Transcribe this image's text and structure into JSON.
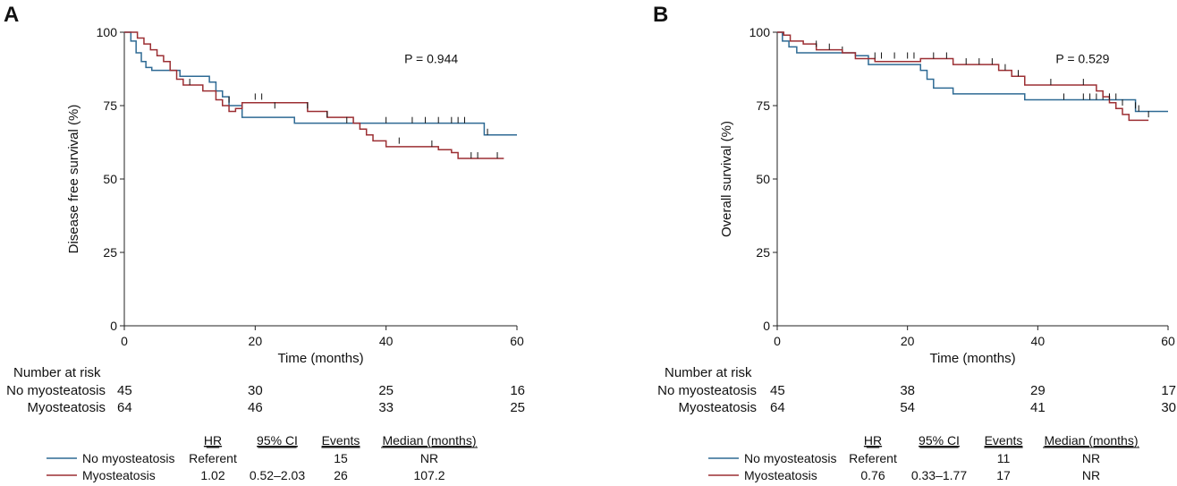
{
  "chart_data": [
    {
      "type": "line",
      "panel": "A",
      "ylabel": "Disease free survival (%)",
      "xlabel": "Time (months)",
      "xlim": [
        0,
        60
      ],
      "ylim": [
        0,
        100
      ],
      "xticks": [
        0,
        20,
        40,
        60
      ],
      "yticks": [
        0,
        25,
        50,
        75,
        100
      ],
      "p_value": "P = 0.944",
      "series": [
        {
          "name": "No myosteatosis",
          "color": "#2e6a94",
          "steps": [
            [
              0,
              100
            ],
            [
              1,
              97
            ],
            [
              1.8,
              93
            ],
            [
              2.6,
              90
            ],
            [
              3.3,
              88
            ],
            [
              4.2,
              87
            ],
            [
              8.5,
              85
            ],
            [
              13,
              83
            ],
            [
              14,
              80
            ],
            [
              15,
              78
            ],
            [
              16,
              75
            ],
            [
              18,
              71
            ],
            [
              26,
              69
            ],
            [
              55,
              69
            ],
            [
              55,
              65
            ],
            [
              60,
              65
            ]
          ],
          "censors": [
            [
              35,
              69
            ],
            [
              40,
              69
            ],
            [
              44,
              69
            ],
            [
              46,
              69
            ],
            [
              48,
              69
            ],
            [
              50,
              69
            ],
            [
              51,
              69
            ],
            [
              52,
              69
            ],
            [
              55.5,
              65
            ]
          ]
        },
        {
          "name": "Myosteatosis",
          "color": "#9c2f33",
          "steps": [
            [
              0,
              100
            ],
            [
              2,
              98
            ],
            [
              3,
              96
            ],
            [
              4,
              94
            ],
            [
              5,
              92
            ],
            [
              6,
              90
            ],
            [
              7,
              87
            ],
            [
              8,
              84
            ],
            [
              9,
              82
            ],
            [
              12,
              80
            ],
            [
              14,
              77
            ],
            [
              15,
              75
            ],
            [
              16,
              73
            ],
            [
              17,
              74
            ],
            [
              18,
              76
            ],
            [
              26,
              76
            ],
            [
              28,
              73
            ],
            [
              31,
              71
            ],
            [
              35,
              69
            ],
            [
              36,
              67
            ],
            [
              37,
              65
            ],
            [
              38,
              63
            ],
            [
              40,
              61
            ],
            [
              46,
              61
            ],
            [
              48,
              60
            ],
            [
              50,
              59
            ],
            [
              51,
              57
            ],
            [
              58,
              57
            ]
          ],
          "censors": [
            [
              10,
              82
            ],
            [
              16,
              76
            ],
            [
              20,
              77
            ],
            [
              21,
              77
            ],
            [
              23,
              74
            ],
            [
              28,
              74
            ],
            [
              31,
              71
            ],
            [
              34,
              69
            ],
            [
              42,
              62
            ],
            [
              47,
              61
            ],
            [
              53,
              57
            ],
            [
              54,
              57
            ],
            [
              57,
              57
            ]
          ]
        }
      ],
      "risk_table": {
        "title": "Number at risk",
        "times": [
          0,
          20,
          40,
          60
        ],
        "rows": [
          {
            "label": "No myosteatosis",
            "values": [
              "45",
              "30",
              "25",
              "16"
            ]
          },
          {
            "label": "Myosteatosis",
            "values": [
              "64",
              "46",
              "33",
              "25"
            ]
          }
        ]
      },
      "summary_table": {
        "headers": [
          "HR",
          "95% CI",
          "Events",
          "Median (months)"
        ],
        "rows": [
          {
            "label": "No myosteatosis",
            "hr": "Referent",
            "ci": "",
            "events": "15",
            "median": "NR"
          },
          {
            "label": "Myosteatosis",
            "hr": "1.02",
            "ci": "0.52–2.03",
            "events": "26",
            "median": "107.2"
          }
        ]
      }
    },
    {
      "type": "line",
      "panel": "B",
      "ylabel": "Overall survival (%)",
      "xlabel": "Time (months)",
      "xlim": [
        0,
        60
      ],
      "ylim": [
        0,
        100
      ],
      "xticks": [
        0,
        20,
        40,
        60
      ],
      "yticks": [
        0,
        25,
        50,
        75,
        100
      ],
      "p_value": "P = 0.529",
      "series": [
        {
          "name": "No myosteatosis",
          "color": "#2e6a94",
          "steps": [
            [
              0,
              100
            ],
            [
              0.8,
              97
            ],
            [
              1.8,
              95
            ],
            [
              3,
              93
            ],
            [
              12,
              92
            ],
            [
              14,
              89
            ],
            [
              20,
              89
            ],
            [
              22,
              87
            ],
            [
              23,
              84
            ],
            [
              24,
              81
            ],
            [
              27,
              79
            ],
            [
              37,
              79
            ],
            [
              38,
              77
            ],
            [
              54,
              77
            ],
            [
              55,
              73
            ],
            [
              60,
              73
            ]
          ],
          "censors": [
            [
              10,
              93
            ],
            [
              44,
              77
            ],
            [
              47,
              77
            ],
            [
              48,
              77
            ],
            [
              49,
              77
            ],
            [
              50,
              77
            ],
            [
              51,
              77
            ],
            [
              52,
              77
            ],
            [
              55.5,
              73
            ]
          ]
        },
        {
          "name": "Myosteatosis",
          "color": "#9c2f33",
          "steps": [
            [
              0,
              100
            ],
            [
              1,
              99
            ],
            [
              2,
              97
            ],
            [
              4,
              96
            ],
            [
              6,
              94
            ],
            [
              10,
              93
            ],
            [
              12,
              91
            ],
            [
              15,
              90
            ],
            [
              22,
              91
            ],
            [
              27,
              89
            ],
            [
              34,
              87
            ],
            [
              36,
              85
            ],
            [
              38,
              82
            ],
            [
              49,
              80
            ],
            [
              50,
              78
            ],
            [
              51,
              76
            ],
            [
              52,
              74
            ],
            [
              53,
              72
            ],
            [
              54,
              70
            ],
            [
              57,
              70
            ]
          ],
          "censors": [
            [
              6,
              95
            ],
            [
              8,
              94
            ],
            [
              15,
              91
            ],
            [
              16,
              91
            ],
            [
              18,
              91
            ],
            [
              20,
              91
            ],
            [
              21,
              91
            ],
            [
              24,
              91
            ],
            [
              26,
              91
            ],
            [
              29,
              89
            ],
            [
              31,
              89
            ],
            [
              33,
              89
            ],
            [
              35,
              87
            ],
            [
              37,
              85
            ],
            [
              42,
              82
            ],
            [
              47,
              82
            ],
            [
              51,
              77
            ],
            [
              53,
              75
            ],
            [
              55,
              74
            ],
            [
              57,
              71
            ]
          ]
        }
      ],
      "risk_table": {
        "title": "Number at risk",
        "times": [
          0,
          20,
          40,
          60
        ],
        "rows": [
          {
            "label": "No myosteatosis",
            "values": [
              "45",
              "38",
              "29",
              "17"
            ]
          },
          {
            "label": "Myosteatosis",
            "values": [
              "64",
              "54",
              "41",
              "30"
            ]
          }
        ]
      },
      "summary_table": {
        "headers": [
          "HR",
          "95% CI",
          "Events",
          "Median (months)"
        ],
        "rows": [
          {
            "label": "No myosteatosis",
            "hr": "Referent",
            "ci": "",
            "events": "11",
            "median": "NR"
          },
          {
            "label": "Myosteatosis",
            "hr": "0.76",
            "ci": "0.33–1.77",
            "events": "17",
            "median": "NR"
          }
        ]
      }
    }
  ]
}
